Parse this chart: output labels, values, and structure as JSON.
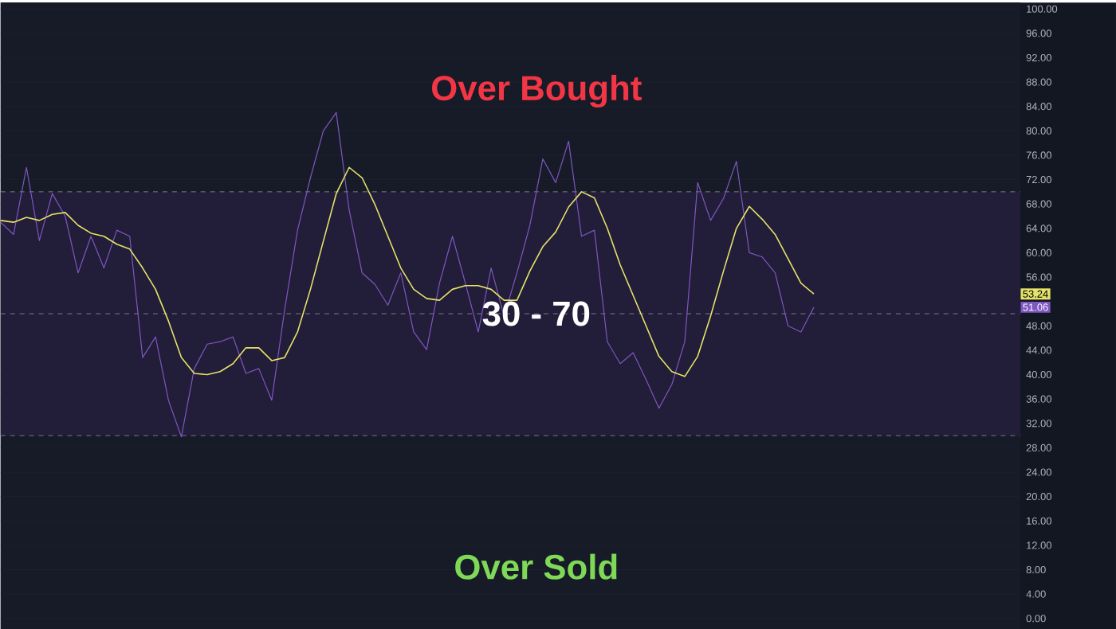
{
  "chart_data": {
    "type": "line",
    "annotations": [
      "Over Bought",
      "Over Sold",
      {
        "text": "53.24",
        "y": 53.24
      },
      {
        "text": "51.06",
        "y": 51.06
      }
    ],
    "categories": [
      null,
      null,
      null,
      null,
      null,
      null,
      null,
      null,
      null,
      null,
      null,
      null,
      null,
      null,
      null,
      null,
      null,
      null,
      null,
      null,
      null,
      null,
      null,
      null,
      null,
      null,
      null,
      null,
      null,
      null,
      null,
      null,
      null,
      null,
      null,
      null,
      null,
      null,
      null,
      null,
      null,
      null,
      null,
      null,
      null,
      null,
      null,
      null,
      null,
      null,
      null,
      null,
      null,
      null,
      null,
      null,
      null,
      null,
      null,
      null,
      null,
      null,
      null,
      null,
      null,
      null,
      null,
      null,
      null,
      null,
      null,
      null,
      null,
      null,
      null,
      null,
      null,
      null,
      null,
      null
    ],
    "series": [
      {
        "color": "#7e57c2",
        "values": [
          65,
          63,
          74,
          62,
          69.7,
          66,
          56.7,
          62.7,
          57.5,
          63.7,
          62.7,
          42.8,
          46.2,
          35.8,
          29.8,
          41,
          45,
          45.4,
          46.2,
          40.2,
          41,
          35.8,
          50.6,
          63.7,
          72.3,
          80,
          83,
          67,
          56.7,
          54.8,
          51.4,
          56.7,
          47,
          44.1,
          55,
          62.7,
          55,
          47,
          57.5,
          49.6,
          56.7,
          64.5,
          75.4,
          71.5,
          78.3,
          62.7,
          63.7,
          45.4,
          41.8,
          43.6,
          39.2,
          34.5,
          38.4,
          45.4,
          71.5,
          65.3,
          68.9,
          75,
          60,
          59.3,
          56.7,
          48,
          47,
          51.06,
          null,
          null,
          null,
          null,
          null,
          null,
          null,
          null,
          null,
          null,
          null,
          null,
          null,
          null,
          null,
          null
        ]
      },
      {
        "color": "#e6e36a",
        "values": [
          65.3,
          65,
          65.8,
          65.3,
          66.3,
          66.6,
          64.5,
          63.2,
          62.7,
          61.4,
          60.6,
          57.5,
          54,
          48.8,
          42.8,
          40.2,
          40,
          40.5,
          41.8,
          44.4,
          44.4,
          42.3,
          42.8,
          47,
          54,
          61.9,
          69.7,
          74,
          72.3,
          67.9,
          62.7,
          57.5,
          54,
          52.5,
          52.2,
          54,
          54.6,
          54.6,
          54,
          52.2,
          52.2,
          57,
          61,
          63.4,
          67.5,
          70,
          69,
          64,
          58,
          53,
          48,
          43,
          40.5,
          39.7,
          43,
          49.6,
          57,
          64,
          67.6,
          65.5,
          63,
          59,
          55,
          53.24,
          null,
          null,
          null,
          null,
          null,
          null,
          null,
          null,
          null,
          null,
          null,
          null,
          null,
          null,
          null,
          null
        ]
      }
    ],
    "ylim": [
      0,
      100
    ],
    "yticks": [
      {
        "value": 0,
        "label": "0.00"
      },
      {
        "value": 4,
        "label": "4.00"
      },
      {
        "value": 8,
        "label": "8.00"
      },
      {
        "value": 12,
        "label": "12.00"
      },
      {
        "value": 16,
        "label": "16.00"
      },
      {
        "value": 20,
        "label": "20.00"
      },
      {
        "value": 24,
        "label": "24.00"
      },
      {
        "value": 28,
        "label": "28.00"
      },
      {
        "value": 32,
        "label": "32.00"
      },
      {
        "value": 36,
        "label": "36.00"
      },
      {
        "value": 40,
        "label": "40.00"
      },
      {
        "value": 44,
        "label": "44.00"
      },
      {
        "value": 48,
        "label": "48.00"
      },
      {
        "value": 52,
        "label": null
      },
      {
        "value": 56,
        "label": "56.00"
      },
      {
        "value": 60,
        "label": "60.00"
      },
      {
        "value": 64,
        "label": "64.00"
      },
      {
        "value": 68,
        "label": "68.00"
      },
      {
        "value": 72,
        "label": "72.00"
      },
      {
        "value": 76,
        "label": "76.00"
      },
      {
        "value": 80,
        "label": "80.00"
      },
      {
        "value": 84,
        "label": "84.00"
      },
      {
        "value": 88,
        "label": "88.00"
      },
      {
        "value": 92,
        "label": "92.00"
      },
      {
        "value": 96,
        "label": "96.00"
      },
      {
        "value": 100,
        "label": "100.00"
      }
    ],
    "bands": [
      {
        "axis": "y",
        "from": 30,
        "to": 70,
        "label": "30 - 70",
        "color": "#221d38"
      }
    ],
    "ref_lines": [
      {
        "axis": "y",
        "value": 70,
        "color": "#787b86",
        "line_style": "dashed"
      },
      {
        "axis": "y",
        "value": 50,
        "color": "#787b86",
        "line_style": "dashed"
      },
      {
        "axis": "y",
        "value": 30,
        "color": "#787b86",
        "line_style": "dashed"
      }
    ],
    "grid": "y",
    "marker": "none",
    "line_style": "solid",
    "tick_labels": "y"
  }
}
